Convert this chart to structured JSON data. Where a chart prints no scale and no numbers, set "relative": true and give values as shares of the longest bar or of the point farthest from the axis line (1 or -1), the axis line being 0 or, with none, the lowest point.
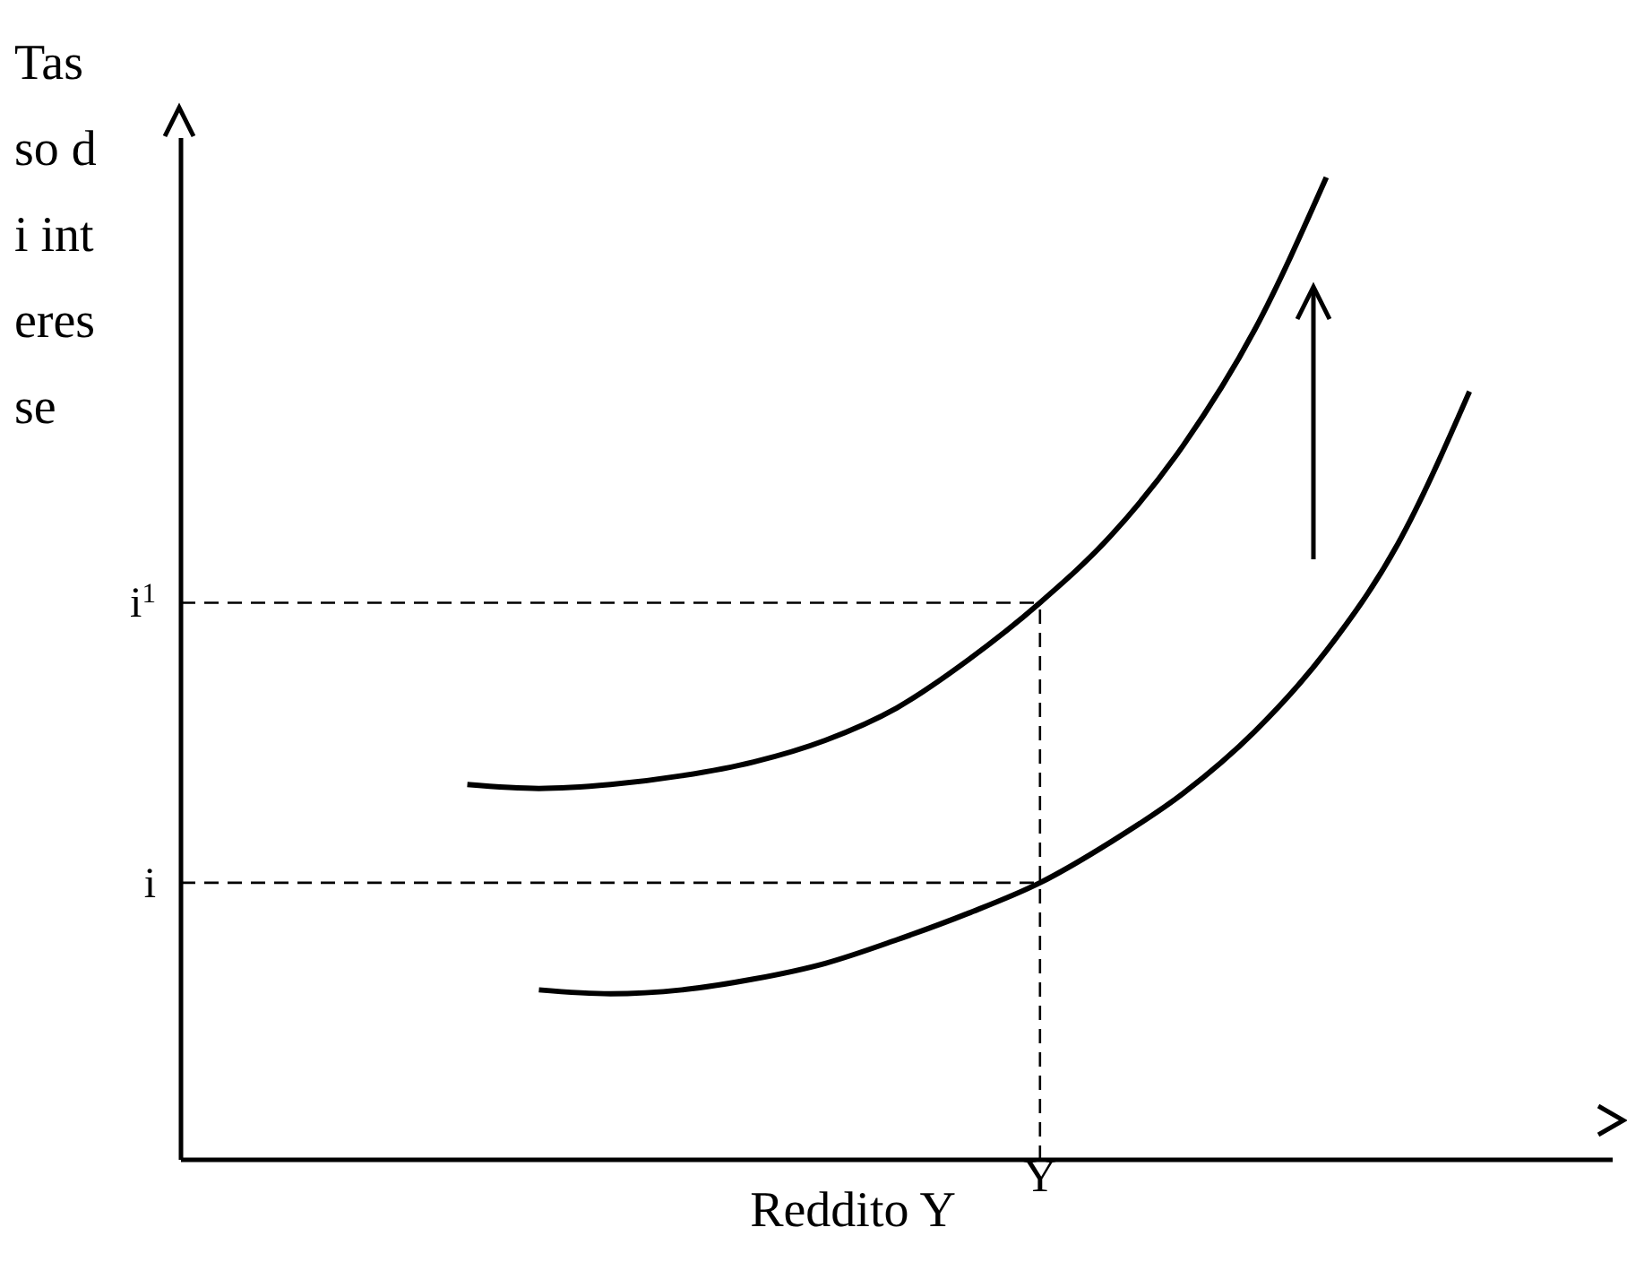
{
  "chart_data": {
    "type": "line",
    "relative": true,
    "ylabel": "Tasso di interesse",
    "xlabel": "Reddito Y",
    "annotations": [
      "Y"
    ],
    "grid": false,
    "legend": false,
    "marker": "none",
    "categories": [
      null,
      null,
      null,
      null,
      null,
      null,
      null,
      null,
      null,
      null,
      null,
      null,
      null,
      null,
      null,
      null,
      null,
      null,
      null,
      null,
      null
    ],
    "series": [
      {
        "color": "#000000",
        "line_style": "solid",
        "values": [
          null,
          null,
          null,
          null,
          0.382,
          0.378,
          0.382,
          0.391,
          0.405,
          0.427,
          0.46,
          0.509,
          0.567,
          0.636,
          0.727,
          0.845,
          1,
          null,
          null,
          null,
          null
        ]
      },
      {
        "color": "#000000",
        "line_style": "solid",
        "values": [
          null,
          null,
          null,
          null,
          null,
          0.173,
          0.169,
          0.173,
          0.184,
          0.2,
          0.224,
          0.251,
          0.282,
          0.324,
          0.373,
          0.436,
          0.518,
          0.627,
          0.782,
          null,
          null
        ]
      },
      {
        "name": "i$^{1}$",
        "color": "#000000",
        "line_style": "dashed",
        "values": [
          0.567,
          0.567,
          0.567,
          0.567,
          0.567,
          0.567,
          0.567,
          0.567,
          0.567,
          0.567,
          0.567,
          0.567,
          0.567,
          null,
          null,
          null,
          null,
          null,
          null,
          null,
          null
        ]
      },
      {
        "name": "i",
        "color": "#000000",
        "line_style": "dashed",
        "values": [
          0.282,
          0.282,
          0.282,
          0.282,
          0.282,
          0.282,
          0.282,
          0.282,
          0.282,
          0.282,
          0.282,
          0.282,
          0.282,
          null,
          null,
          null,
          null,
          null,
          null,
          null,
          null
        ]
      }
    ]
  }
}
